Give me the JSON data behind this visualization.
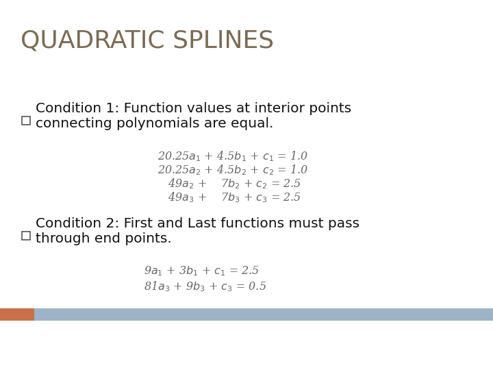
{
  "title": "QUADRATIC SPLINES",
  "title_color": "#7B6B55",
  "title_fontsize": 26,
  "bg_color": "#FFFFFF",
  "header_bar_color": "#9DB3C8",
  "header_bar_orange": "#C8714A",
  "condition1_text1": "Condition 1: Function values at interior points",
  "condition1_text2": "connecting polynomials are equal.",
  "condition2_text1": "Condition 2: First and Last functions must pass",
  "condition2_text2": "through end points.",
  "equations_1": [
    "20.25$a_1$ + 4.5$b_1$ + $c_1$ = 1.0",
    "20.25$a_2$ + 4.5$b_2$ + $c_2$ = 1.0",
    "$\\quad$49$a_2$ +    7$b_2$ + $c_2$ = 2.5",
    "$\\quad$49$a_3$ +    7$b_3$ + $c_3$ = 2.5"
  ],
  "equations_2": [
    "9$a_1$ + 3$b_1$ + $c_1$ = 2.5",
    "81$a_3$ + 9$b_3$ + $c_3$ = 0.5"
  ],
  "eq_color": "#666666",
  "text_color": "#111111",
  "bullet_edge_color": "#555555"
}
